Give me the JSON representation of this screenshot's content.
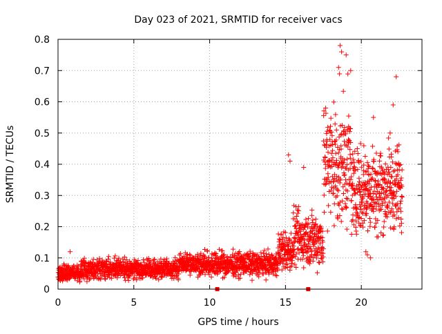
{
  "chart_data": {
    "type": "scatter",
    "title": "Day 023 of 2021, SRMTID for receiver vacs",
    "xlabel": "GPS time / hours",
    "ylabel": "SRMTID / TECUs",
    "xlim": [
      0,
      24
    ],
    "ylim": [
      0,
      0.8
    ],
    "xticks": [
      0,
      5,
      10,
      15,
      20
    ],
    "yticks": [
      0,
      0.1,
      0.2,
      0.3,
      0.4,
      0.5,
      0.6,
      0.7,
      0.8
    ],
    "xtick_labels": [
      "0",
      "5",
      "10",
      "15",
      "20"
    ],
    "ytick_labels": [
      "0",
      "0.1",
      "0.2",
      "0.3",
      "0.4",
      "0.5",
      "0.6",
      "0.7",
      "0.8"
    ],
    "grid": true,
    "marker": "+",
    "marker_color": "#ff0000",
    "series": [
      {
        "name": "SRMTID",
        "profile": [
          {
            "x": [
              0,
              1.5
            ],
            "center": 0.05,
            "spread": 0.04
          },
          {
            "x": [
              1.5,
              8
            ],
            "center": 0.065,
            "spread": 0.045
          },
          {
            "x": [
              8,
              9.2
            ],
            "center": 0.085,
            "spread": 0.05
          },
          {
            "x": [
              9.2,
              14.5
            ],
            "center": 0.08,
            "spread": 0.055
          },
          {
            "x": [
              14.5,
              15.5
            ],
            "center": 0.12,
            "spread": 0.09
          },
          {
            "x": [
              15.5,
              17.5
            ],
            "center": 0.16,
            "spread": 0.13
          },
          {
            "x": [
              17.5,
              19.3
            ],
            "center": 0.4,
            "spread": 0.3
          },
          {
            "x": [
              19.3,
              22.7
            ],
            "center": 0.32,
            "spread": 0.2
          }
        ],
        "highlights": [
          {
            "x": 0.8,
            "y": 0.12
          },
          {
            "x": 15.2,
            "y": 0.43
          },
          {
            "x": 15.3,
            "y": 0.41
          },
          {
            "x": 16.2,
            "y": 0.39
          },
          {
            "x": 18.6,
            "y": 0.78
          },
          {
            "x": 18.7,
            "y": 0.76
          },
          {
            "x": 19.0,
            "y": 0.75
          },
          {
            "x": 18.5,
            "y": 0.71
          },
          {
            "x": 19.3,
            "y": 0.7
          },
          {
            "x": 20.8,
            "y": 0.55
          },
          {
            "x": 22.3,
            "y": 0.68
          },
          {
            "x": 21.9,
            "y": 0.5
          },
          {
            "x": 22.1,
            "y": 0.59
          },
          {
            "x": 20.3,
            "y": 0.12
          },
          {
            "x": 20.6,
            "y": 0.1
          },
          {
            "x": 20.4,
            "y": 0.11
          }
        ]
      }
    ],
    "markers_on_axis": [
      {
        "x": 10.5,
        "y": 0
      },
      {
        "x": 16.5,
        "y": 0
      }
    ]
  }
}
